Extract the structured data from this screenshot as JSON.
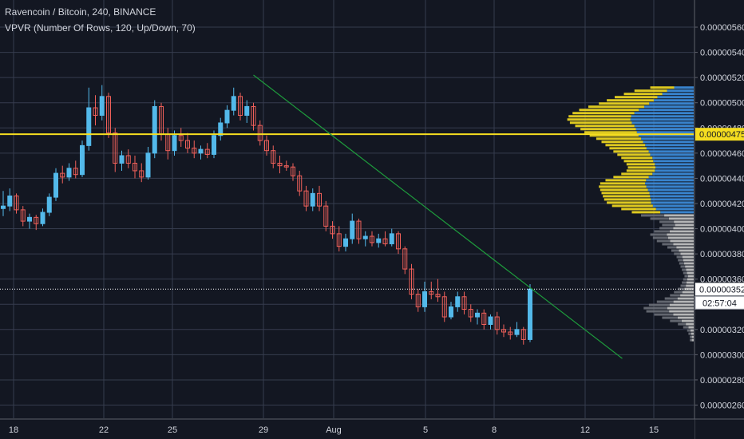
{
  "header": {
    "title": "Ravencoin / Bitcoin, 240, BINANCE",
    "indicator": "VPVR (Number Of Rows, 120, Up/Down, 70)"
  },
  "colors": {
    "background": "#131722",
    "grid": "#363c4e",
    "up": "#53b9ea",
    "down": "#f0605a",
    "trendline": "#1e9a3c",
    "poc": "#f5dd20",
    "vp_up": "#3d8fe0",
    "vp_down": "#f5dd20",
    "vp_low": "#c8c8c8",
    "label_bg": "#ffffff",
    "label_text": "#131722",
    "poc_label_bg": "#f5dd20"
  },
  "chart_data": {
    "type": "candlestick",
    "title": "Ravencoin / Bitcoin, 240, BINANCE",
    "x_ticks": [
      "18",
      "22",
      "25",
      "29",
      "Aug",
      "5",
      "8",
      "12",
      "15"
    ],
    "y_ticks": [
      "0.00000560",
      "0.00000540",
      "0.00000520",
      "0.00000500",
      "0.00000480",
      "0.00000460",
      "0.00000440",
      "0.00000420",
      "0.00000400",
      "0.00000380",
      "0.00000360",
      "0.00000340",
      "0.00000320",
      "0.00000300",
      "0.00000280",
      "0.00000260"
    ],
    "ylim": [
      2.55e-06,
      5.68e-06
    ],
    "poc_price_label": "0.00000475",
    "current_price_label": "0.00000352",
    "countdown_label": "02:57:04",
    "grid": true,
    "candles": [
      {
        "o": 4.16e-06,
        "h": 4.3e-06,
        "l": 4.1e-06,
        "c": 4.18e-06
      },
      {
        "o": 4.18e-06,
        "h": 4.32e-06,
        "l": 4.14e-06,
        "c": 4.26e-06
      },
      {
        "o": 4.26e-06,
        "h": 4.28e-06,
        "l": 4.12e-06,
        "c": 4.15e-06
      },
      {
        "o": 4.15e-06,
        "h": 4.18e-06,
        "l": 4.02e-06,
        "c": 4.06e-06
      },
      {
        "o": 4.06e-06,
        "h": 4.12e-06,
        "l": 4e-06,
        "c": 4.09e-06
      },
      {
        "o": 4.09e-06,
        "h": 4.11e-06,
        "l": 3.99e-06,
        "c": 4.04e-06
      },
      {
        "o": 4.04e-06,
        "h": 4.16e-06,
        "l": 4.02e-06,
        "c": 4.13e-06
      },
      {
        "o": 4.13e-06,
        "h": 4.28e-06,
        "l": 4.1e-06,
        "c": 4.25e-06
      },
      {
        "o": 4.25e-06,
        "h": 4.48e-06,
        "l": 4.22e-06,
        "c": 4.44e-06
      },
      {
        "o": 4.44e-06,
        "h": 4.5e-06,
        "l": 4.36e-06,
        "c": 4.41e-06
      },
      {
        "o": 4.41e-06,
        "h": 4.52e-06,
        "l": 4.38e-06,
        "c": 4.48e-06
      },
      {
        "o": 4.48e-06,
        "h": 4.54e-06,
        "l": 4.4e-06,
        "c": 4.43e-06
      },
      {
        "o": 4.43e-06,
        "h": 4.7e-06,
        "l": 4.41e-06,
        "c": 4.66e-06
      },
      {
        "o": 4.66e-06,
        "h": 5.12e-06,
        "l": 4.62e-06,
        "c": 4.96e-06
      },
      {
        "o": 4.96e-06,
        "h": 5.06e-06,
        "l": 4.82e-06,
        "c": 4.9e-06
      },
      {
        "o": 4.9e-06,
        "h": 5.14e-06,
        "l": 4.86e-06,
        "c": 5.05e-06
      },
      {
        "o": 5.05e-06,
        "h": 5.08e-06,
        "l": 4.72e-06,
        "c": 4.76e-06
      },
      {
        "o": 4.76e-06,
        "h": 4.8e-06,
        "l": 4.45e-06,
        "c": 4.52e-06
      },
      {
        "o": 4.52e-06,
        "h": 4.62e-06,
        "l": 4.46e-06,
        "c": 4.58e-06
      },
      {
        "o": 4.58e-06,
        "h": 4.63e-06,
        "l": 4.48e-06,
        "c": 4.52e-06
      },
      {
        "o": 4.52e-06,
        "h": 4.58e-06,
        "l": 4.4e-06,
        "c": 4.46e-06
      },
      {
        "o": 4.46e-06,
        "h": 4.52e-06,
        "l": 4.37e-06,
        "c": 4.41e-06
      },
      {
        "o": 4.41e-06,
        "h": 4.65e-06,
        "l": 4.39e-06,
        "c": 4.6e-06
      },
      {
        "o": 4.6e-06,
        "h": 5.02e-06,
        "l": 4.56e-06,
        "c": 4.97e-06
      },
      {
        "o": 4.97e-06,
        "h": 5e-06,
        "l": 4.7e-06,
        "c": 4.75e-06
      },
      {
        "o": 4.75e-06,
        "h": 4.8e-06,
        "l": 4.55e-06,
        "c": 4.62e-06
      },
      {
        "o": 4.62e-06,
        "h": 4.78e-06,
        "l": 4.58e-06,
        "c": 4.74e-06
      },
      {
        "o": 4.74e-06,
        "h": 4.8e-06,
        "l": 4.65e-06,
        "c": 4.7e-06
      },
      {
        "o": 4.7e-06,
        "h": 4.76e-06,
        "l": 4.6e-06,
        "c": 4.64e-06
      },
      {
        "o": 4.64e-06,
        "h": 4.7e-06,
        "l": 4.56e-06,
        "c": 4.6e-06
      },
      {
        "o": 4.6e-06,
        "h": 4.66e-06,
        "l": 4.55e-06,
        "c": 4.63e-06
      },
      {
        "o": 4.63e-06,
        "h": 4.68e-06,
        "l": 4.56e-06,
        "c": 4.59e-06
      },
      {
        "o": 4.59e-06,
        "h": 4.78e-06,
        "l": 4.56e-06,
        "c": 4.74e-06
      },
      {
        "o": 4.74e-06,
        "h": 4.88e-06,
        "l": 4.7e-06,
        "c": 4.84e-06
      },
      {
        "o": 4.84e-06,
        "h": 4.98e-06,
        "l": 4.8e-06,
        "c": 4.94e-06
      },
      {
        "o": 4.94e-06,
        "h": 5.12e-06,
        "l": 4.9e-06,
        "c": 5.05e-06
      },
      {
        "o": 5.05e-06,
        "h": 5.08e-06,
        "l": 4.86e-06,
        "c": 4.9e-06
      },
      {
        "o": 4.9e-06,
        "h": 5.02e-06,
        "l": 4.84e-06,
        "c": 4.97e-06
      },
      {
        "o": 4.97e-06,
        "h": 5e-06,
        "l": 4.78e-06,
        "c": 4.82e-06
      },
      {
        "o": 4.82e-06,
        "h": 4.86e-06,
        "l": 4.66e-06,
        "c": 4.7e-06
      },
      {
        "o": 4.7e-06,
        "h": 4.74e-06,
        "l": 4.58e-06,
        "c": 4.62e-06
      },
      {
        "o": 4.62e-06,
        "h": 4.66e-06,
        "l": 4.48e-06,
        "c": 4.52e-06
      },
      {
        "o": 4.52e-06,
        "h": 4.58e-06,
        "l": 4.44e-06,
        "c": 4.5e-06
      },
      {
        "o": 4.5e-06,
        "h": 4.54e-06,
        "l": 4.46e-06,
        "c": 4.49e-06
      },
      {
        "o": 4.49e-06,
        "h": 4.52e-06,
        "l": 4.38e-06,
        "c": 4.42e-06
      },
      {
        "o": 4.42e-06,
        "h": 4.46e-06,
        "l": 4.26e-06,
        "c": 4.3e-06
      },
      {
        "o": 4.3e-06,
        "h": 4.34e-06,
        "l": 4.14e-06,
        "c": 4.18e-06
      },
      {
        "o": 4.18e-06,
        "h": 4.32e-06,
        "l": 4.14e-06,
        "c": 4.28e-06
      },
      {
        "o": 4.28e-06,
        "h": 4.34e-06,
        "l": 4.14e-06,
        "c": 4.18e-06
      },
      {
        "o": 4.18e-06,
        "h": 4.22e-06,
        "l": 3.98e-06,
        "c": 4.02e-06
      },
      {
        "o": 4.02e-06,
        "h": 4.06e-06,
        "l": 3.92e-06,
        "c": 3.96e-06
      },
      {
        "o": 3.96e-06,
        "h": 4.02e-06,
        "l": 3.82e-06,
        "c": 3.86e-06
      },
      {
        "o": 3.86e-06,
        "h": 3.96e-06,
        "l": 3.82e-06,
        "c": 3.92e-06
      },
      {
        "o": 3.92e-06,
        "h": 4.12e-06,
        "l": 3.88e-06,
        "c": 4.06e-06
      },
      {
        "o": 4.06e-06,
        "h": 4.08e-06,
        "l": 3.88e-06,
        "c": 3.92e-06
      },
      {
        "o": 3.92e-06,
        "h": 3.98e-06,
        "l": 3.86e-06,
        "c": 3.94e-06
      },
      {
        "o": 3.94e-06,
        "h": 3.98e-06,
        "l": 3.86e-06,
        "c": 3.89e-06
      },
      {
        "o": 3.89e-06,
        "h": 3.96e-06,
        "l": 3.85e-06,
        "c": 3.92e-06
      },
      {
        "o": 3.92e-06,
        "h": 3.98e-06,
        "l": 3.86e-06,
        "c": 3.88e-06
      },
      {
        "o": 3.88e-06,
        "h": 4e-06,
        "l": 3.86e-06,
        "c": 3.96e-06
      },
      {
        "o": 3.96e-06,
        "h": 3.98e-06,
        "l": 3.8e-06,
        "c": 3.84e-06
      },
      {
        "o": 3.84e-06,
        "h": 3.86e-06,
        "l": 3.64e-06,
        "c": 3.68e-06
      },
      {
        "o": 3.68e-06,
        "h": 3.72e-06,
        "l": 3.44e-06,
        "c": 3.48e-06
      },
      {
        "o": 3.48e-06,
        "h": 3.52e-06,
        "l": 3.34e-06,
        "c": 3.38e-06
      },
      {
        "o": 3.38e-06,
        "h": 3.58e-06,
        "l": 3.34e-06,
        "c": 3.5e-06
      },
      {
        "o": 3.5e-06,
        "h": 3.58e-06,
        "l": 3.44e-06,
        "c": 3.48e-06
      },
      {
        "o": 3.48e-06,
        "h": 3.6e-06,
        "l": 3.42e-06,
        "c": 3.46e-06
      },
      {
        "o": 3.46e-06,
        "h": 3.5e-06,
        "l": 3.26e-06,
        "c": 3.3e-06
      },
      {
        "o": 3.3e-06,
        "h": 3.42e-06,
        "l": 3.28e-06,
        "c": 3.38e-06
      },
      {
        "o": 3.38e-06,
        "h": 3.5e-06,
        "l": 3.34e-06,
        "c": 3.46e-06
      },
      {
        "o": 3.46e-06,
        "h": 3.5e-06,
        "l": 3.32e-06,
        "c": 3.36e-06
      },
      {
        "o": 3.36e-06,
        "h": 3.4e-06,
        "l": 3.26e-06,
        "c": 3.3e-06
      },
      {
        "o": 3.3e-06,
        "h": 3.36e-06,
        "l": 3.24e-06,
        "c": 3.33e-06
      },
      {
        "o": 3.33e-06,
        "h": 3.36e-06,
        "l": 3.2e-06,
        "c": 3.24e-06
      },
      {
        "o": 3.24e-06,
        "h": 3.32e-06,
        "l": 3.2e-06,
        "c": 3.3e-06
      },
      {
        "o": 3.3e-06,
        "h": 3.34e-06,
        "l": 3.16e-06,
        "c": 3.2e-06
      },
      {
        "o": 3.2e-06,
        "h": 3.24e-06,
        "l": 3.14e-06,
        "c": 3.18e-06
      },
      {
        "o": 3.18e-06,
        "h": 3.22e-06,
        "l": 3.12e-06,
        "c": 3.16e-06
      },
      {
        "o": 3.16e-06,
        "h": 3.26e-06,
        "l": 3.14e-06,
        "c": 3.2e-06
      },
      {
        "o": 3.2e-06,
        "h": 3.22e-06,
        "l": 3.08e-06,
        "c": 3.12e-06
      },
      {
        "o": 3.12e-06,
        "h": 3.56e-06,
        "l": 3.1e-06,
        "c": 3.52e-06
      }
    ],
    "trendline": {
      "start": {
        "bar": 38,
        "price": 5.22e-06
      },
      "end": {
        "bar": 94,
        "price": 2.97e-06
      }
    },
    "volume_profile": {
      "total": [
        0.33,
        0.45,
        0.53,
        0.6,
        0.66,
        0.72,
        0.8,
        0.87,
        0.92,
        0.95,
        0.96,
        0.94,
        0.9,
        0.86,
        0.83,
        0.79,
        0.74,
        0.7,
        0.67,
        0.64,
        0.61,
        0.58,
        0.55,
        0.53,
        0.51,
        0.5,
        0.51,
        0.55,
        0.61,
        0.67,
        0.71,
        0.72,
        0.71,
        0.7,
        0.69,
        0.68,
        0.66,
        0.62,
        0.55,
        0.47,
        0.4,
        0.33,
        0.26,
        0.24,
        0.26,
        0.3,
        0.33,
        0.31,
        0.28,
        0.24,
        0.2,
        0.17,
        0.15,
        0.13,
        0.12,
        0.11,
        0.1,
        0.09,
        0.08,
        0.07,
        0.08,
        0.09,
        0.1,
        0.12,
        0.15,
        0.18,
        0.22,
        0.28,
        0.34,
        0.38,
        0.36,
        0.3,
        0.24,
        0.18,
        0.12,
        0.08,
        0.05,
        0.04,
        0.03,
        0.03
      ],
      "up_ratio": [
        0.45,
        0.45,
        0.45,
        0.46,
        0.46,
        0.47,
        0.47,
        0.48,
        0.49,
        0.5,
        0.5,
        0.5,
        0.5,
        0.51,
        0.52,
        0.53,
        0.54,
        0.55,
        0.55,
        0.56,
        0.56,
        0.57,
        0.57,
        0.58,
        0.58,
        0.58,
        0.58,
        0.57,
        0.56,
        0.54,
        0.52,
        0.5,
        0.49,
        0.48,
        0.48,
        0.48,
        0.49,
        0.5,
        0.52,
        0.54,
        0.56,
        0.57,
        0.58,
        0.59,
        0.6,
        0.61,
        0.62,
        0.63,
        0.64,
        0.65,
        0.66,
        0.66,
        0.67,
        0.67,
        0.67,
        0.66,
        0.66,
        0.65,
        0.64,
        0.63,
        0.62,
        0.61,
        0.6,
        0.59,
        0.58,
        0.57,
        0.56,
        0.55,
        0.54,
        0.53,
        0.52,
        0.52,
        0.51,
        0.51,
        0.5,
        0.5,
        0.5,
        0.5,
        0.5,
        0.5
      ],
      "top_price": 5.13e-06,
      "bottom_price": 3.1e-06,
      "highlight_top_price": 4.13e-06
    }
  }
}
